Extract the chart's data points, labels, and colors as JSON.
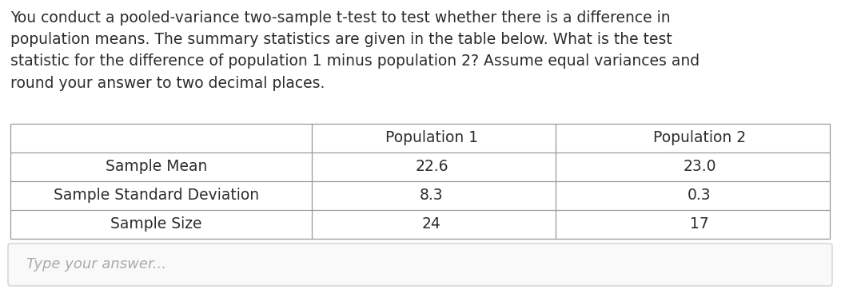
{
  "question_text": "You conduct a pooled-variance two-sample t-test to test whether there is a difference in\npopulation means. The summary statistics are given in the table below. What is the test\nstatistic for the difference of population 1 minus population 2? Assume equal variances and\nround your answer to two decimal places.",
  "table_headers": [
    "",
    "Population 1",
    "Population 2"
  ],
  "table_rows": [
    [
      "Sample Mean",
      "22.6",
      "23.0"
    ],
    [
      "Sample Standard Deviation",
      "8.3",
      "0.3"
    ],
    [
      "Sample Size",
      "24",
      "17"
    ]
  ],
  "answer_placeholder": "Type your answer...",
  "bg_color": "#ffffff",
  "text_color": "#2c2c2c",
  "table_border_color": "#999999",
  "answer_box_bg": "#f9f9f9",
  "answer_box_border": "#cccccc",
  "answer_text_color": "#aaaaaa",
  "question_fontsize": 13.5,
  "table_fontsize": 13.5,
  "answer_fontsize": 13.0,
  "font_family": "DejaVu Sans"
}
